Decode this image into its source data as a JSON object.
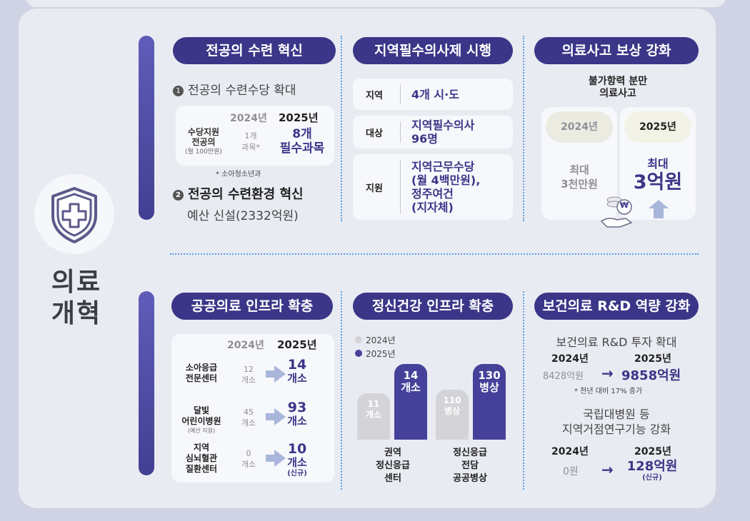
{
  "main": {
    "label_line1": "의료",
    "label_line2": "개혁"
  },
  "s1": {
    "title": "전공의 수련 혁신",
    "item1": "전공의 수련수당 확대",
    "col_2024": "2024년",
    "col_2025": "2025년",
    "row_label1": "수당지원",
    "row_label2": "전공의",
    "row_label3": "(월 100만원)",
    "v2024_a": "1개",
    "v2024_b": "과목*",
    "v2025_a": "8개",
    "v2025_b": "필수과목",
    "note": "* 소아청소년과",
    "item2": "전공의 수련환경 혁신",
    "item2_sub": "예산 신설(2332억원)"
  },
  "s2": {
    "title": "지역필수의사제 시행",
    "rows": [
      {
        "label": "지역",
        "value_lines": [
          "4개 시·도"
        ]
      },
      {
        "label": "대상",
        "value_lines": [
          "지역필수의사",
          "96명"
        ]
      },
      {
        "label": "지원",
        "value_lines": [
          "지역근무수당",
          "(월 4백만원),",
          "정주여건",
          "(지자체)"
        ]
      }
    ]
  },
  "s3": {
    "title": "의료사고 보상 강화",
    "subtitle1": "불가항력 분만",
    "subtitle2": "의료사고",
    "y2024": "2024년",
    "y2025": "2025년",
    "v2024_a": "최대",
    "v2024_b": "3천만원",
    "v2025_a": "최대",
    "v2025_b": "3억원",
    "coin_symbol": "₩"
  },
  "s4": {
    "title": "공공의료 인프라 확충",
    "col_2024": "2024년",
    "col_2025": "2025년",
    "rows": [
      {
        "label_lines": [
          "소아응급",
          "전문센터"
        ],
        "v2024": "12",
        "unit2024": "개소",
        "v2025": "14",
        "unit2025": "개소"
      },
      {
        "label_lines": [
          "달빛",
          "어린이병원"
        ],
        "label_sub": "(예산 지원)",
        "v2024": "45",
        "unit2024": "개소",
        "v2025": "93",
        "unit2025": "개소"
      },
      {
        "label_lines": [
          "지역",
          "심뇌혈관",
          "질환센터"
        ],
        "v2024": "0",
        "unit2024": "개소",
        "v2025": "10",
        "unit2025": "개소",
        "note2025": "(신규)"
      }
    ]
  },
  "s5": {
    "title": "정신건강 인프라 확충",
    "legend": [
      "2024년",
      "2025년"
    ],
    "bar_labels": [
      {
        "v2024_a": "11",
        "v2024_b": "개소",
        "v2025_a": "14",
        "v2025_b": "개소"
      },
      {
        "v2024_a": "110",
        "v2024_b": "병상",
        "v2025_a": "130",
        "v2025_b": "병상"
      }
    ],
    "group1": [
      "권역",
      "정신응급",
      "센터"
    ],
    "group2": [
      "정신응급",
      "전담",
      "공공병상"
    ]
  },
  "s6": {
    "title": "보건의료 R&D 역량 강화",
    "sub1": "보건의료 R&D 투자 확대",
    "y2024": "2024년",
    "y2025": "2025년",
    "v1_2024": "8428억원",
    "v1_2025": "9858억원",
    "note1": "* 전년 대비 17% 증가",
    "sub2_line1": "국립대병원 등",
    "sub2_line2": "지역거점연구기능 강화",
    "v2_2024": "0원",
    "v2_2025": "128억원",
    "v2_note": "(신규)",
    "arrow": "→"
  },
  "chart_data": {
    "type": "bar",
    "categories": [
      "권역 정신응급 센터",
      "정신응급 전담 공공병상"
    ],
    "series": [
      {
        "name": "2024년",
        "values": [
          11,
          110
        ]
      },
      {
        "name": "2025년",
        "values": [
          14,
          130
        ]
      }
    ],
    "legend": "top-left",
    "colors": {
      "2024년": "#d4d4d8",
      "2025년": "#45419a"
    }
  },
  "colors": {
    "navy": "#3b3688",
    "bar": "#45419a",
    "gray_bar": "#d4d4d8",
    "dots": "#5aa0e0"
  }
}
